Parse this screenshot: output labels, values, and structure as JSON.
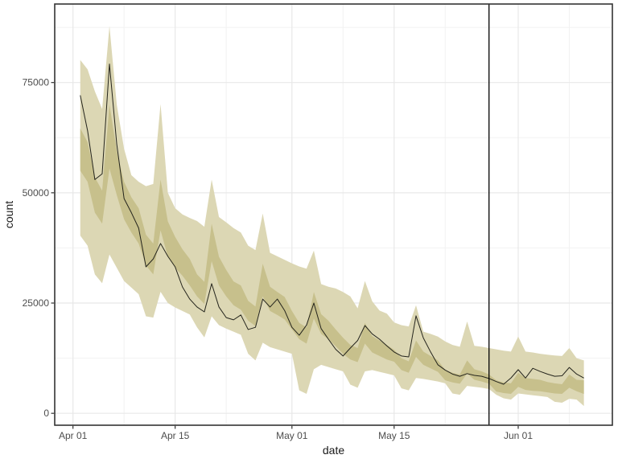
{
  "chart_data": {
    "type": "line",
    "title": "",
    "xlabel": "date",
    "ylabel": "count",
    "x_unit": "days since Apr 01 (day 1 = Apr 02, day 70 = Jun 10)",
    "legend": "none",
    "grid": true,
    "xlim": [
      -2.5,
      73.9
    ],
    "ylim": [
      -2700,
      92800
    ],
    "x_ticks": [
      {
        "pos": 0,
        "label": "Apr 01"
      },
      {
        "pos": 14,
        "label": "Apr 15"
      },
      {
        "pos": 30,
        "label": "May 01"
      },
      {
        "pos": 44,
        "label": "May 15"
      },
      {
        "pos": 61,
        "label": "Jun 01"
      }
    ],
    "x_minor": [
      7,
      21,
      37,
      51,
      68
    ],
    "y_ticks": [
      {
        "pos": 0,
        "label": "0"
      },
      {
        "pos": 25000,
        "label": "25000"
      },
      {
        "pos": 50000,
        "label": "50000"
      },
      {
        "pos": 75000,
        "label": "75000"
      }
    ],
    "y_minor": [
      12500,
      37500,
      62500,
      87500
    ],
    "vline_x": 57,
    "x": [
      1,
      2,
      3,
      4,
      5,
      6,
      7,
      8,
      9,
      10,
      11,
      12,
      13,
      14,
      15,
      16,
      17,
      18,
      19,
      20,
      21,
      22,
      23,
      24,
      25,
      26,
      27,
      28,
      29,
      30,
      31,
      32,
      33,
      34,
      35,
      36,
      37,
      38,
      39,
      40,
      41,
      42,
      43,
      44,
      45,
      46,
      47,
      48,
      49,
      50,
      51,
      52,
      53,
      54,
      55,
      56,
      57,
      58,
      59,
      60,
      61,
      62,
      63,
      64,
      65,
      66,
      67,
      68,
      69,
      70
    ],
    "series": [
      {
        "name": "count_line",
        "values": [
          72100,
          64100,
          53000,
          54300,
          79200,
          61000,
          48700,
          45500,
          42000,
          33200,
          35000,
          38500,
          35600,
          33200,
          28650,
          25900,
          24100,
          23000,
          29400,
          24100,
          21700,
          21200,
          22300,
          19000,
          19500,
          25900,
          24100,
          25900,
          23300,
          19500,
          17700,
          20000,
          25000,
          19200,
          16800,
          14500,
          13000,
          14800,
          16500,
          19900,
          18000,
          16800,
          15300,
          13900,
          13000,
          12800,
          22100,
          17100,
          13900,
          11000,
          9800,
          8900,
          8400,
          9000,
          8600,
          8400,
          7900,
          7200,
          6600,
          8000,
          9900,
          8000,
          10200,
          9500,
          8900,
          8400,
          8500,
          10400,
          8900,
          8000
        ]
      },
      {
        "name": "outer_ribbon_upper",
        "values": [
          80100,
          78000,
          73000,
          69000,
          87800,
          70000,
          60000,
          54000,
          52500,
          51500,
          52000,
          70100,
          50000,
          46500,
          45100,
          44300,
          43600,
          42300,
          53000,
          44500,
          43300,
          42000,
          41000,
          38000,
          37000,
          45300,
          36400,
          35600,
          34800,
          34000,
          33300,
          32800,
          36900,
          29300,
          28700,
          28300,
          27500,
          26500,
          23800,
          30000,
          25400,
          23300,
          22600,
          20600,
          20000,
          19700,
          24500,
          18500,
          18000,
          17400,
          16300,
          15500,
          15100,
          20800,
          15300,
          15100,
          14800,
          14500,
          14200,
          14000,
          17400,
          14000,
          13800,
          13500,
          13300,
          13100,
          13000,
          14800,
          12500,
          12000
        ]
      },
      {
        "name": "outer_ribbon_lower",
        "values": [
          40300,
          38000,
          31500,
          29500,
          36000,
          33000,
          30000,
          28500,
          27000,
          22000,
          21700,
          27550,
          25000,
          24000,
          23200,
          22400,
          19500,
          17200,
          22000,
          20000,
          19200,
          18500,
          17800,
          13500,
          12000,
          16000,
          15000,
          14500,
          14000,
          13500,
          5200,
          4400,
          10000,
          11000,
          10500,
          10000,
          9500,
          6500,
          5800,
          9500,
          9800,
          9400,
          9000,
          8600,
          5650,
          5200,
          8000,
          7800,
          7500,
          7200,
          6800,
          4500,
          4200,
          6200,
          6000,
          5800,
          5500,
          4200,
          3400,
          3100,
          4500,
          4300,
          4100,
          3900,
          3700,
          2600,
          2400,
          3300,
          3100,
          1640
        ]
      },
      {
        "name": "inner_ribbon_upper",
        "values": [
          64600,
          61500,
          53500,
          50500,
          70000,
          59500,
          52500,
          49000,
          46500,
          40500,
          38500,
          53000,
          43500,
          40000,
          37200,
          35000,
          31500,
          29800,
          43000,
          35500,
          32500,
          29900,
          29000,
          25500,
          24200,
          33900,
          28700,
          27500,
          26400,
          23200,
          20500,
          19500,
          27500,
          22500,
          21000,
          19000,
          17150,
          15500,
          14800,
          20500,
          17500,
          16500,
          15500,
          14400,
          12500,
          11800,
          16500,
          14000,
          13000,
          12000,
          9850,
          9200,
          8800,
          12000,
          10000,
          9500,
          8800,
          7480,
          7000,
          6800,
          9200,
          8000,
          7800,
          7600,
          7100,
          6800,
          6600,
          8800,
          7600,
          7480
        ]
      },
      {
        "name": "inner_ribbon_lower",
        "values": [
          55000,
          52500,
          45500,
          43000,
          55500,
          49500,
          44000,
          41000,
          38500,
          33500,
          31500,
          41500,
          35500,
          33000,
          31200,
          29000,
          26500,
          24800,
          34500,
          29000,
          26500,
          24500,
          23500,
          21000,
          19800,
          26500,
          23200,
          22300,
          21300,
          19000,
          16800,
          15800,
          21500,
          18000,
          16800,
          15200,
          13500,
          12200,
          11600,
          15800,
          13800,
          13000,
          12200,
          11700,
          9800,
          9200,
          12800,
          11000,
          10200,
          9400,
          7480,
          7000,
          6700,
          9000,
          7600,
          7200,
          6700,
          4930,
          4600,
          4400,
          6000,
          5300,
          5100,
          5000,
          4750,
          4500,
          4400,
          5800,
          5000,
          4380
        ]
      }
    ],
    "colors": {
      "background": "#ffffff",
      "ribbon_outer": "#dcd7b4",
      "ribbon_inner": "#c7c08c",
      "line": "#24241c",
      "vline": "#000000",
      "grid_major": "#e8e8e8",
      "grid_minor": "#f2f2f2",
      "panel_border": "#333333",
      "tick_mark": "#333333",
      "tick_label": "#4d4d4d",
      "axis_title": "#1a1a1a"
    }
  }
}
